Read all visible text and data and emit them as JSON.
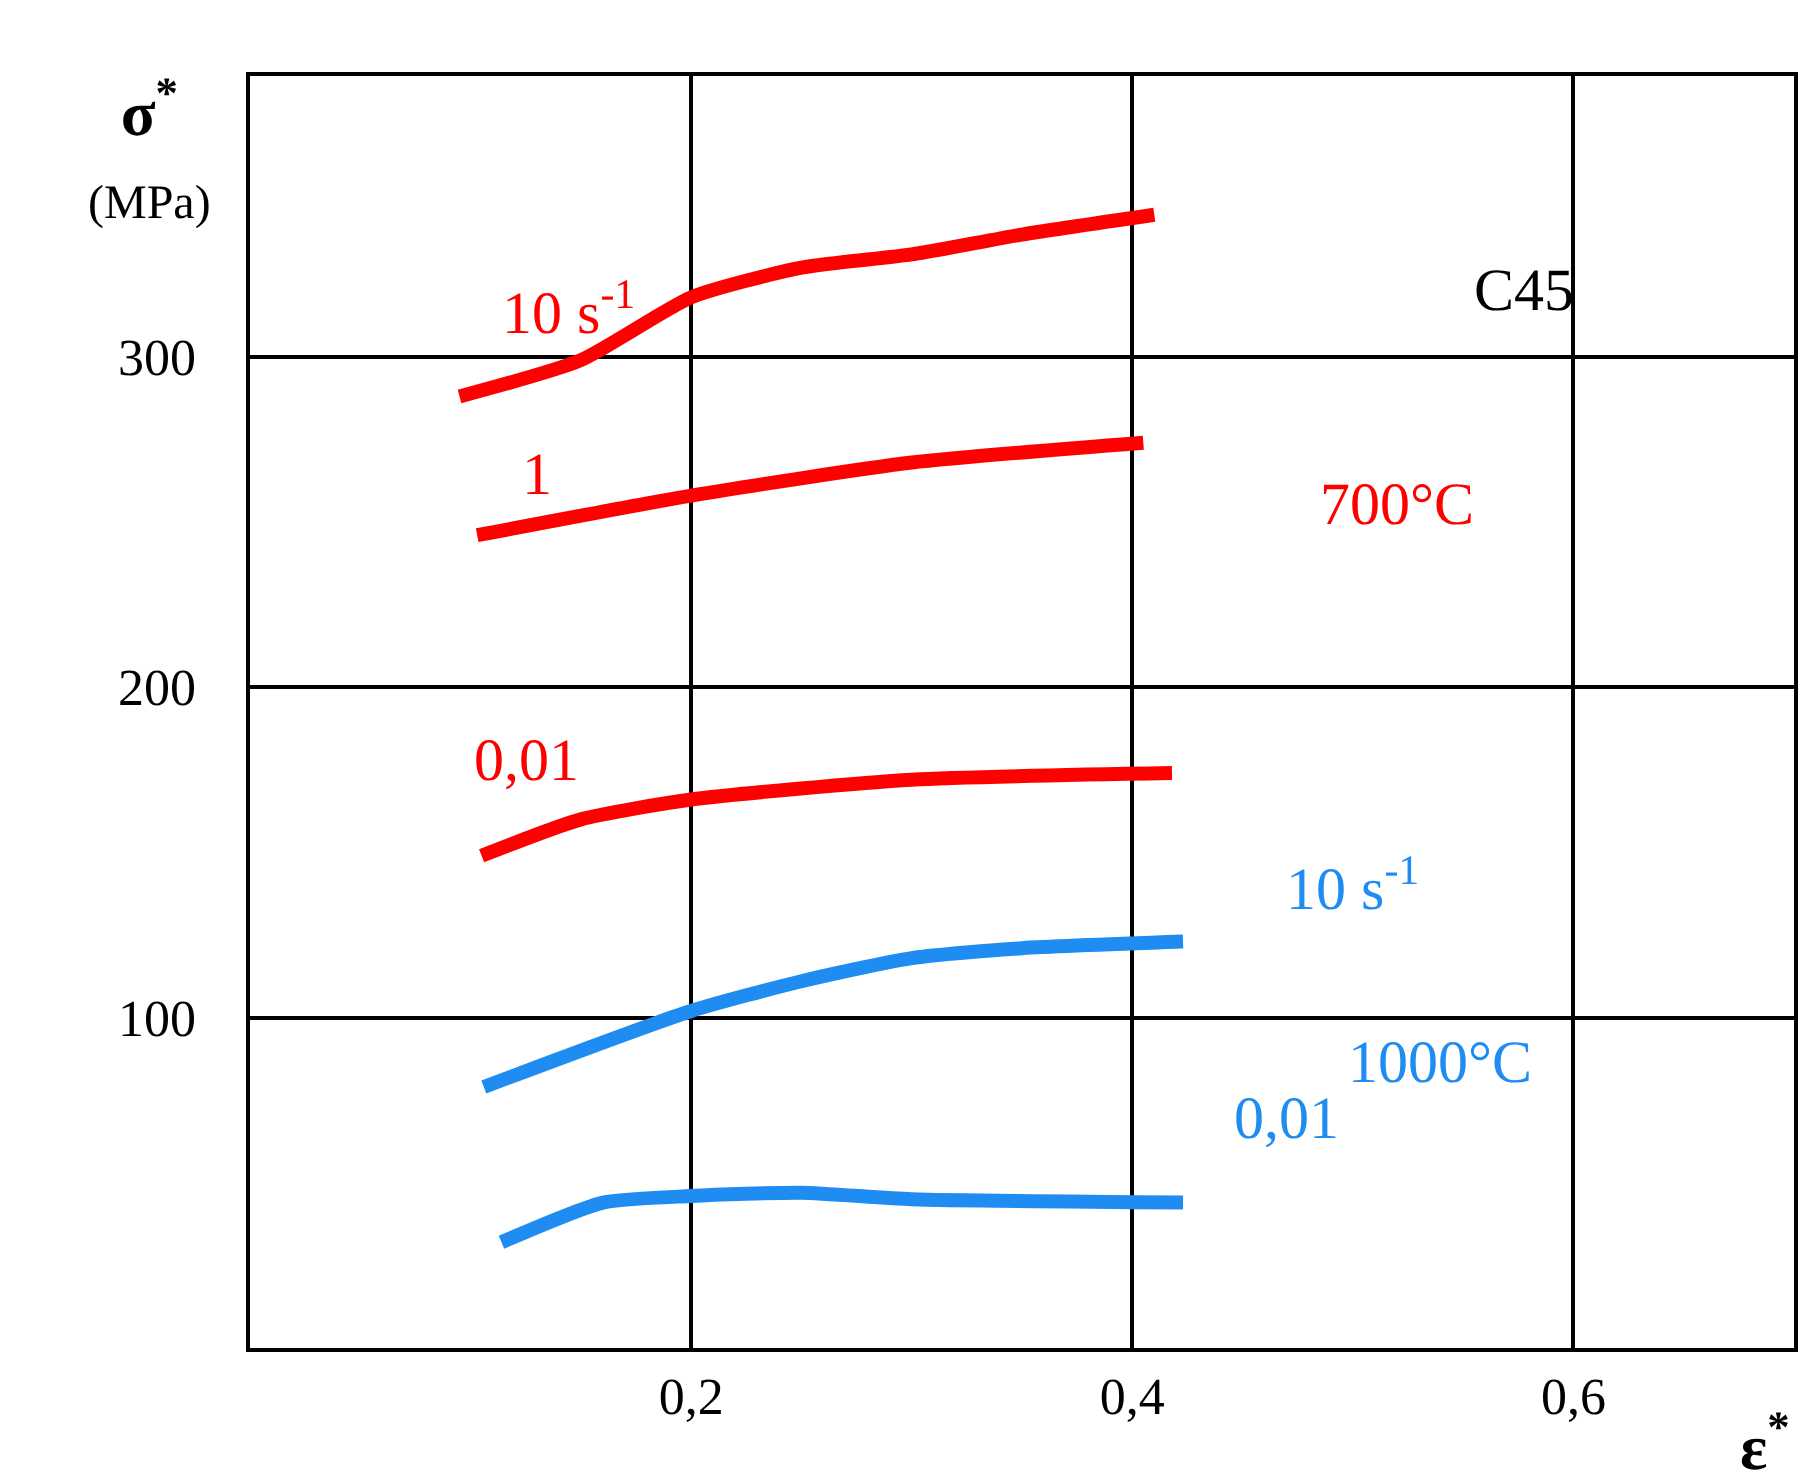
{
  "chart_data": {
    "type": "line",
    "xlabel": "ε$^{*}$",
    "ylabel": "σ$^{*}$\n(MPa)",
    "xlim": [
      0,
      0.7
    ],
    "ylim": [
      0,
      385
    ],
    "xticks": [
      {
        "value": 0.2,
        "label": "0,2"
      },
      {
        "value": 0.4,
        "label": "0,4"
      },
      {
        "value": 0.6,
        "label": "0,6"
      }
    ],
    "yticks": [
      100,
      200,
      300
    ],
    "grid": true,
    "marker": "none",
    "line_style": "solid",
    "series": [
      {
        "color": "#ff0000",
        "x": [
          0.095,
          0.15,
          0.2,
          0.25,
          0.3,
          0.35,
          0.41
        ],
        "values": [
          288,
          299,
          318,
          327,
          331,
          337,
          343
        ]
      },
      {
        "color": "#ff0000",
        "x": [
          0.103,
          0.2,
          0.3,
          0.405
        ],
        "values": [
          246,
          258,
          268,
          274
        ]
      },
      {
        "color": "#ff0000",
        "x": [
          0.105,
          0.15,
          0.2,
          0.3,
          0.418
        ],
        "values": [
          149,
          160,
          166,
          172,
          174
        ]
      },
      {
        "color": "#1e8cf0",
        "x": [
          0.106,
          0.2,
          0.25,
          0.3,
          0.35,
          0.423
        ],
        "values": [
          79,
          102,
          111,
          118,
          121,
          123
        ]
      },
      {
        "color": "#1e8cf0",
        "x": [
          0.114,
          0.16,
          0.2,
          0.25,
          0.3,
          0.423
        ],
        "values": [
          32,
          44,
          46,
          47,
          45,
          44
        ]
      }
    ],
    "annotations": [
      "10 s$^{-1}$",
      "1",
      "700°C",
      "0,01",
      "10 s$^{-1}$",
      "1000°C",
      "0,01",
      "C45"
    ]
  }
}
